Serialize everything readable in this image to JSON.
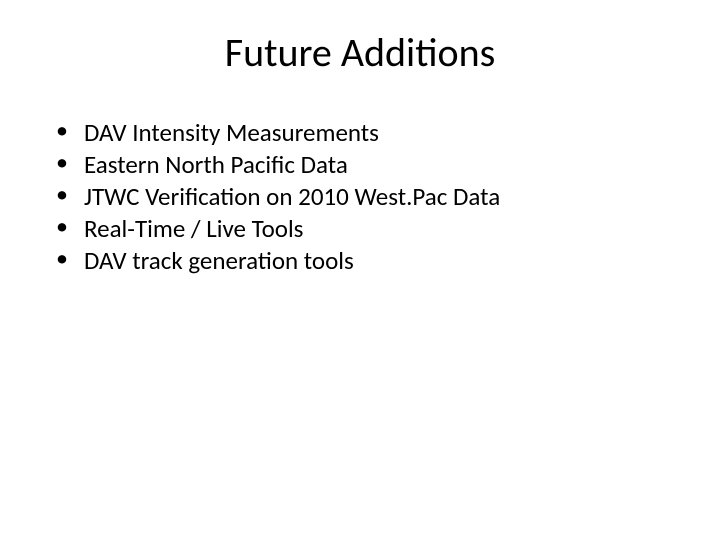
{
  "slide": {
    "title": "Future Additions",
    "bullets": [
      "DAV Intensity Measurements",
      "Eastern North Pacific Data",
      "JTWC Verification on 2010 West.Pac Data",
      "Real-Time / Live Tools",
      "DAV track generation tools"
    ]
  }
}
